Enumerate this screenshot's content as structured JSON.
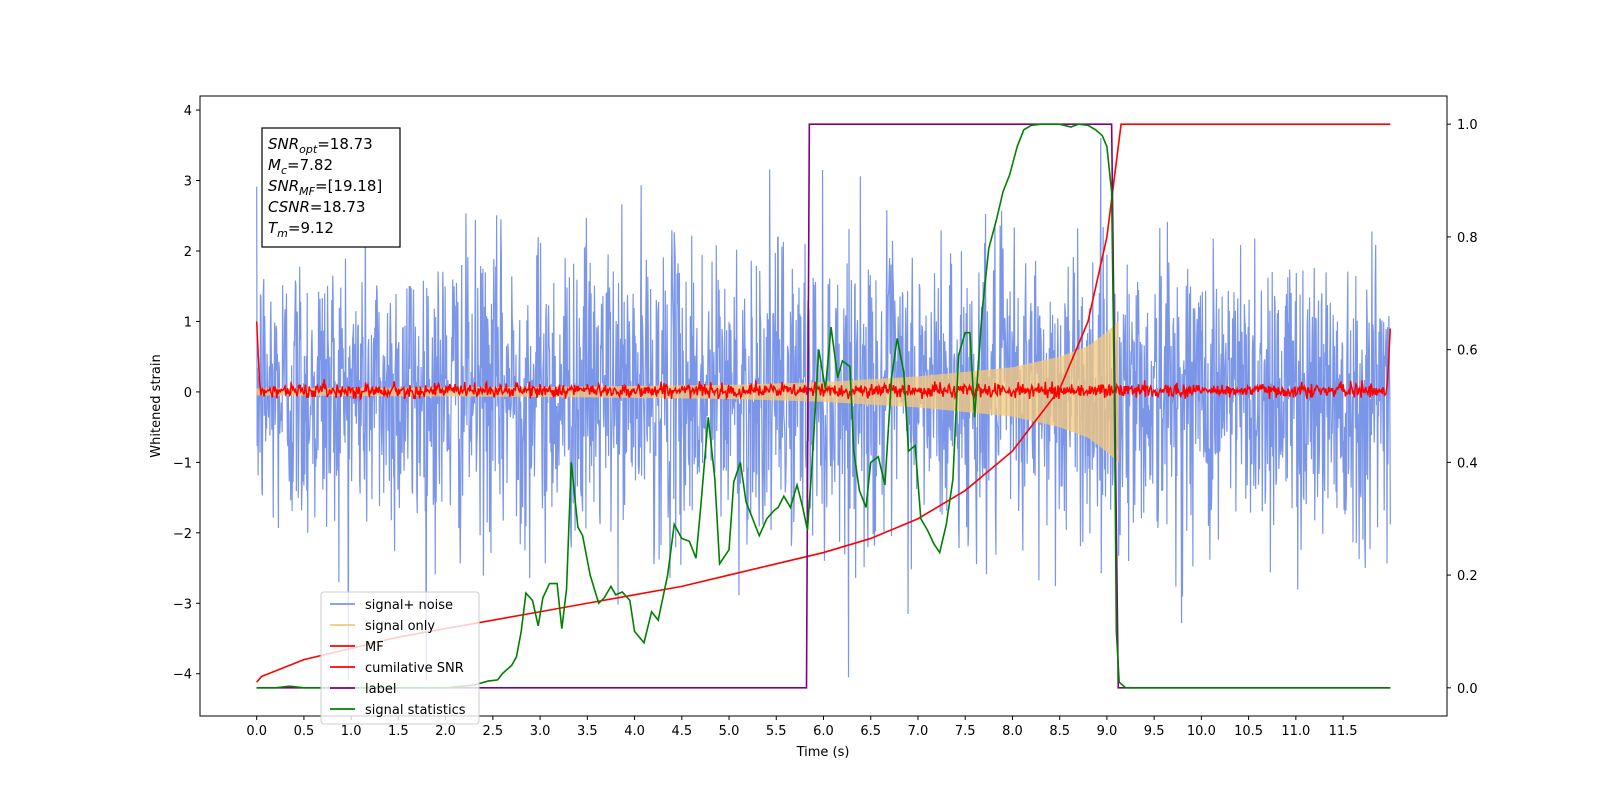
{
  "chart_data": {
    "type": "line",
    "xlabel": "Time (s)",
    "ylabel": "Whitened strain",
    "xlim": [
      -0.6,
      12.6
    ],
    "ylim": [
      -4.6,
      4.2
    ],
    "ylim_right": [
      -0.05,
      1.05
    ],
    "x_ticks": [
      0.0,
      0.5,
      1.0,
      1.5,
      2.0,
      2.5,
      3.0,
      3.5,
      4.0,
      4.5,
      5.0,
      5.5,
      6.0,
      6.5,
      7.0,
      7.5,
      8.0,
      8.5,
      9.0,
      9.5,
      10.0,
      10.5,
      11.0,
      11.5
    ],
    "x_tick_labels": [
      "0.0",
      "0.5",
      "1.0",
      "1.5",
      "2.0",
      "2.5",
      "3.0",
      "3.5",
      "4.0",
      "4.5",
      "5.0",
      "5.5",
      "6.0",
      "6.5",
      "7.0",
      "7.5",
      "8.0",
      "8.5",
      "9.0",
      "9.5",
      "10.0",
      "10.5",
      "11.0",
      "11.5"
    ],
    "y_ticks": [
      -4,
      -3,
      -2,
      -1,
      0,
      1,
      2,
      3,
      4
    ],
    "y_tick_labels": [
      "−4",
      "−3",
      "−2",
      "−1",
      "0",
      "1",
      "2",
      "3",
      "4"
    ],
    "y_ticks_right": [
      0.0,
      0.2,
      0.4,
      0.6,
      0.8,
      1.0
    ],
    "y_tick_labels_right": [
      "0.0",
      "0.2",
      "0.4",
      "0.6",
      "0.8",
      "1.0"
    ],
    "legend_position": "lower-left",
    "info_box": {
      "position": "upper-left",
      "lines": [
        {
          "sym": "SNR",
          "sub": "opt",
          "val": "=18.73"
        },
        {
          "sym": "M",
          "sub": "c",
          "val": "=7.82"
        },
        {
          "sym": "SNR",
          "sub": "MF",
          "val": "=[19.18]"
        },
        {
          "sym": "CSNR",
          "sub": "",
          "val": "=18.73"
        },
        {
          "sym": "T",
          "sub": "m",
          "val": "=9.12"
        }
      ]
    },
    "series": [
      {
        "name": "signal+ noise",
        "color": "#7b96e8",
        "axis": "left",
        "kind": "noise",
        "t_range": [
          0.0,
          12.0
        ],
        "amplitude_approx": 3.0,
        "description_values": {
          "y_max": 3.8,
          "y_min": -4.1
        }
      },
      {
        "name": "signal only",
        "color": "#f5c87a",
        "axis": "left",
        "kind": "chirp",
        "t_range": [
          0.0,
          9.12
        ],
        "envelope_points": [
          [
            0.0,
            0.05
          ],
          [
            3.0,
            0.07
          ],
          [
            5.0,
            0.1
          ],
          [
            6.0,
            0.14
          ],
          [
            7.0,
            0.22
          ],
          [
            8.0,
            0.35
          ],
          [
            8.5,
            0.5
          ],
          [
            8.8,
            0.65
          ],
          [
            9.0,
            0.85
          ],
          [
            9.12,
            1.0
          ]
        ]
      },
      {
        "name": "MF",
        "color": "#ff0000",
        "axis": "left",
        "kind": "mf",
        "t_range": [
          0.0,
          12.0
        ],
        "edge_values": [
          [
            0.0,
            1.0
          ],
          [
            0.03,
            0.15
          ],
          [
            11.97,
            0.15
          ],
          [
            12.0,
            0.9
          ]
        ],
        "noise_amplitude_approx": 0.05
      },
      {
        "name": "cumilative SNR",
        "color": "#ff0000",
        "axis": "right",
        "points": [
          [
            0.0,
            0.01
          ],
          [
            0.05,
            0.02
          ],
          [
            0.5,
            0.05
          ],
          [
            1.0,
            0.07
          ],
          [
            1.5,
            0.09
          ],
          [
            2.0,
            0.105
          ],
          [
            2.5,
            0.12
          ],
          [
            3.0,
            0.135
          ],
          [
            3.5,
            0.15
          ],
          [
            4.0,
            0.165
          ],
          [
            4.5,
            0.18
          ],
          [
            5.0,
            0.2
          ],
          [
            5.5,
            0.22
          ],
          [
            6.0,
            0.24
          ],
          [
            6.5,
            0.265
          ],
          [
            7.0,
            0.3
          ],
          [
            7.5,
            0.35
          ],
          [
            8.0,
            0.42
          ],
          [
            8.5,
            0.53
          ],
          [
            8.8,
            0.65
          ],
          [
            9.0,
            0.8
          ],
          [
            9.12,
            0.96
          ],
          [
            9.15,
            1.0
          ],
          [
            12.0,
            1.0
          ]
        ]
      },
      {
        "name": "label",
        "color": "#800080",
        "axis": "right",
        "points": [
          [
            0.0,
            0.0
          ],
          [
            5.82,
            0.0
          ],
          [
            5.85,
            1.0
          ],
          [
            9.05,
            1.0
          ],
          [
            9.12,
            0.0
          ],
          [
            12.0,
            0.0
          ]
        ]
      },
      {
        "name": "signal statistics",
        "color": "#008000",
        "axis": "right",
        "points": [
          [
            0.0,
            0.0
          ],
          [
            0.2,
            0.0
          ],
          [
            0.35,
            0.003
          ],
          [
            0.5,
            0.0
          ],
          [
            1.0,
            0.0
          ],
          [
            1.5,
            0.0
          ],
          [
            2.0,
            0.0
          ],
          [
            2.3,
            0.005
          ],
          [
            2.45,
            0.012
          ],
          [
            2.55,
            0.014
          ],
          [
            2.6,
            0.025
          ],
          [
            2.7,
            0.04
          ],
          [
            2.75,
            0.055
          ],
          [
            2.8,
            0.1
          ],
          [
            2.85,
            0.168
          ],
          [
            2.92,
            0.155
          ],
          [
            2.98,
            0.11
          ],
          [
            3.03,
            0.16
          ],
          [
            3.1,
            0.185
          ],
          [
            3.18,
            0.185
          ],
          [
            3.23,
            0.105
          ],
          [
            3.28,
            0.175
          ],
          [
            3.33,
            0.4
          ],
          [
            3.4,
            0.285
          ],
          [
            3.45,
            0.27
          ],
          [
            3.53,
            0.2
          ],
          [
            3.62,
            0.15
          ],
          [
            3.68,
            0.16
          ],
          [
            3.75,
            0.18
          ],
          [
            3.8,
            0.165
          ],
          [
            3.87,
            0.17
          ],
          [
            3.95,
            0.155
          ],
          [
            4.0,
            0.1
          ],
          [
            4.1,
            0.08
          ],
          [
            4.18,
            0.135
          ],
          [
            4.25,
            0.12
          ],
          [
            4.35,
            0.2
          ],
          [
            4.42,
            0.29
          ],
          [
            4.5,
            0.265
          ],
          [
            4.58,
            0.26
          ],
          [
            4.65,
            0.23
          ],
          [
            4.7,
            0.32
          ],
          [
            4.78,
            0.48
          ],
          [
            4.85,
            0.37
          ],
          [
            4.9,
            0.22
          ],
          [
            5.0,
            0.245
          ],
          [
            5.05,
            0.365
          ],
          [
            5.12,
            0.4
          ],
          [
            5.18,
            0.33
          ],
          [
            5.25,
            0.3
          ],
          [
            5.32,
            0.27
          ],
          [
            5.4,
            0.3
          ],
          [
            5.48,
            0.315
          ],
          [
            5.52,
            0.32
          ],
          [
            5.58,
            0.34
          ],
          [
            5.65,
            0.32
          ],
          [
            5.72,
            0.36
          ],
          [
            5.78,
            0.32
          ],
          [
            5.83,
            0.28
          ],
          [
            5.88,
            0.4
          ],
          [
            5.95,
            0.6
          ],
          [
            6.02,
            0.53
          ],
          [
            6.08,
            0.64
          ],
          [
            6.15,
            0.55
          ],
          [
            6.2,
            0.58
          ],
          [
            6.28,
            0.57
          ],
          [
            6.32,
            0.42
          ],
          [
            6.38,
            0.35
          ],
          [
            6.45,
            0.32
          ],
          [
            6.5,
            0.4
          ],
          [
            6.58,
            0.41
          ],
          [
            6.65,
            0.36
          ],
          [
            6.72,
            0.55
          ],
          [
            6.78,
            0.62
          ],
          [
            6.85,
            0.56
          ],
          [
            6.9,
            0.42
          ],
          [
            6.97,
            0.43
          ],
          [
            7.03,
            0.3
          ],
          [
            7.1,
            0.28
          ],
          [
            7.17,
            0.255
          ],
          [
            7.23,
            0.24
          ],
          [
            7.3,
            0.29
          ],
          [
            7.37,
            0.37
          ],
          [
            7.43,
            0.59
          ],
          [
            7.5,
            0.63
          ],
          [
            7.55,
            0.63
          ],
          [
            7.6,
            0.48
          ],
          [
            7.68,
            0.67
          ],
          [
            7.75,
            0.78
          ],
          [
            7.83,
            0.83
          ],
          [
            7.9,
            0.88
          ],
          [
            7.97,
            0.91
          ],
          [
            8.05,
            0.96
          ],
          [
            8.12,
            0.99
          ],
          [
            8.2,
            0.998
          ],
          [
            8.3,
            1.0
          ],
          [
            8.5,
            1.0
          ],
          [
            8.62,
            0.995
          ],
          [
            8.7,
            1.0
          ],
          [
            8.8,
            0.998
          ],
          [
            8.88,
            0.99
          ],
          [
            8.95,
            0.98
          ],
          [
            9.0,
            0.96
          ],
          [
            9.05,
            0.88
          ],
          [
            9.08,
            0.5
          ],
          [
            9.1,
            0.1
          ],
          [
            9.13,
            0.01
          ],
          [
            9.2,
            0.0
          ],
          [
            12.0,
            0.0
          ]
        ]
      }
    ]
  }
}
